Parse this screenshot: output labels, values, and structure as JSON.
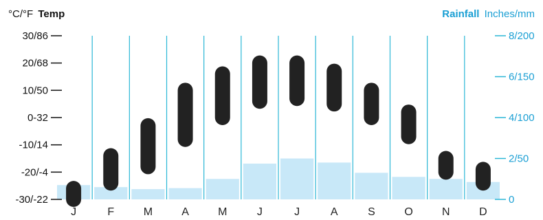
{
  "colors": {
    "rain_bar": "#c8e8f8",
    "divider": "#29b6d6",
    "temp_pill": "#222222",
    "left_text": "#111111",
    "right_text": "#1a9fd4"
  },
  "chart_data": {
    "type": "bar",
    "categories": [
      "J",
      "F",
      "M",
      "A",
      "M",
      "J",
      "J",
      "A",
      "S",
      "O",
      "N",
      "D"
    ],
    "left_axis": {
      "unit_label": "°C/°F",
      "title": "Temp",
      "ticks": [
        "30/86",
        "20/68",
        "10/50",
        "0-32",
        "-10/14",
        "-20/-4",
        "-30/-22"
      ],
      "tick_values_c": [
        30,
        20,
        10,
        0,
        -10,
        -20,
        -30
      ],
      "range_c": [
        -30,
        30
      ]
    },
    "right_axis": {
      "title": "Rainfall",
      "unit_label": "Inches/mm",
      "ticks": [
        "8/200",
        "6/150",
        "4/100",
        "2/50",
        "0"
      ],
      "tick_values_in": [
        8,
        6,
        4,
        2,
        0
      ],
      "range_in": [
        0,
        8
      ]
    },
    "series": [
      {
        "type": "range",
        "axis": "left",
        "low": [
          -30,
          -24,
          -18,
          -8,
          0,
          6,
          7,
          5,
          0,
          -7,
          -20,
          -24
        ],
        "high": [
          -26,
          -14,
          -3,
          10,
          16,
          20,
          20,
          17,
          10,
          2,
          -15,
          -19
        ]
      },
      {
        "type": "bar",
        "axis": "right",
        "values": [
          0.7,
          0.6,
          0.5,
          0.55,
          1.0,
          1.75,
          2.0,
          1.8,
          1.3,
          1.1,
          1.0,
          0.85
        ]
      }
    ]
  }
}
